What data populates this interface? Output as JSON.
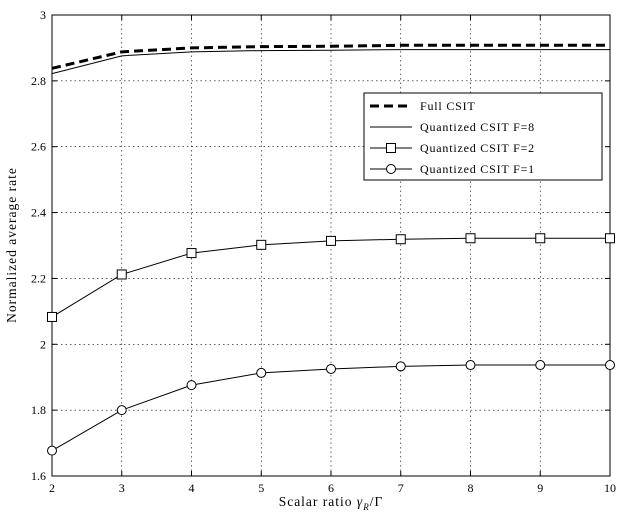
{
  "chart_data": {
    "type": "line",
    "x": [
      2,
      3,
      4,
      5,
      6,
      7,
      8,
      9,
      10
    ],
    "xlabel_text": "Scalar ratio ",
    "xlabel_math": "γ",
    "xlabel_sub": "R",
    "xlabel_tail": "/Γ",
    "ylabel": "Normalized average rate",
    "xlim": [
      2,
      10
    ],
    "ylim": [
      1.6,
      3.0
    ],
    "xticks": [
      "2",
      "3",
      "4",
      "5",
      "6",
      "7",
      "8",
      "9",
      "10"
    ],
    "yticks": [
      "1.6",
      "1.8",
      "2",
      "2.2",
      "2.4",
      "2.6",
      "2.8",
      "3"
    ],
    "grid": true,
    "legend_position": "upper-right",
    "series": [
      {
        "name": "Full CSIT",
        "style": "dashed-bold",
        "marker": "none",
        "values": [
          2.838,
          2.888,
          2.9,
          2.904,
          2.905,
          2.908,
          2.908,
          2.908,
          2.908
        ]
      },
      {
        "name": "Quantized CSIT F=8",
        "style": "solid",
        "marker": "none",
        "values": [
          2.822,
          2.876,
          2.888,
          2.892,
          2.893,
          2.895,
          2.895,
          2.895,
          2.895
        ]
      },
      {
        "name": "Quantized CSIT F=2",
        "style": "solid",
        "marker": "square",
        "values": [
          2.083,
          2.212,
          2.277,
          2.302,
          2.314,
          2.319,
          2.322,
          2.322,
          2.322
        ]
      },
      {
        "name": "Quantized CSIT F=1",
        "style": "solid",
        "marker": "circle",
        "values": [
          1.677,
          1.8,
          1.876,
          1.913,
          1.925,
          1.933,
          1.937,
          1.937,
          1.937
        ]
      }
    ]
  }
}
